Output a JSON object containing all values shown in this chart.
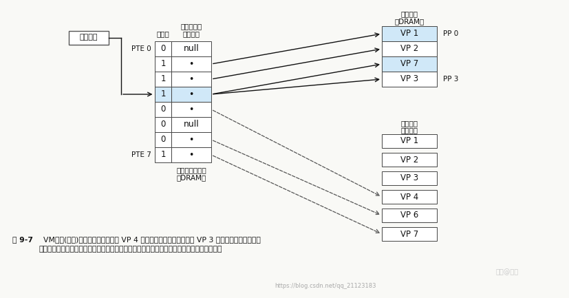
{
  "bg_color": "#f8f8f5",
  "virtual_addr_label": "虚拟地址",
  "page_table_header1": "物理页号或",
  "page_table_header2": "磁盘地址",
  "valid_bit_header": "有效位",
  "page_table_label1": "常驻内存的页表",
  "page_table_label2": "（DRAM）",
  "pte0_label": "PTE 0",
  "pte7_label": "PTE 7",
  "phys_mem_title1": "物理内存",
  "phys_mem_title2": "（DRAM）",
  "virt_mem_title1": "虚拟内存",
  "virt_mem_title2": "（磁盘）",
  "pp0_label": "PP 0",
  "pp3_label": "PP 3",
  "page_table_rows": [
    {
      "valid": "0",
      "addr": "null",
      "shaded": false
    },
    {
      "valid": "1",
      "addr": "•",
      "shaded": false
    },
    {
      "valid": "1",
      "addr": "•",
      "shaded": false
    },
    {
      "valid": "1",
      "addr": "•",
      "shaded": true
    },
    {
      "valid": "0",
      "addr": "•",
      "shaded": false
    },
    {
      "valid": "0",
      "addr": "null",
      "shaded": false
    },
    {
      "valid": "0",
      "addr": "•",
      "shaded": false
    },
    {
      "valid": "1",
      "addr": "•",
      "shaded": false
    }
  ],
  "phys_mem_rows": [
    {
      "label": "VP 1",
      "shaded": true
    },
    {
      "label": "VP 2",
      "shaded": false
    },
    {
      "label": "VP 7",
      "shaded": true
    },
    {
      "label": "VP 3",
      "shaded": false
    }
  ],
  "virt_mem_rows": [
    "VP 1",
    "VP 2",
    "VP 3",
    "VP 4",
    "VP 6",
    "VP 7"
  ],
  "shaded_color": "#d0e8f8",
  "box_color": "#ffffff",
  "border_color": "#444444",
  "text_color": "#111111",
  "caption_bold": "图 9-7",
  "caption_line1": "  VM缺页(之后)。缺页处理程序选择 VP 4 作为牺牲页，并从磁盘上用 VP 3 的副本取代它。在缺页",
  "caption_line2": "处理程序重新启动导致缺页的指令之后，该指令将从内存中正常地读取字，而不会再产生异常",
  "watermark": "https://blog.csdn.net/qq_21123183",
  "solid_arrows": [
    [
      1,
      0
    ],
    [
      2,
      1
    ],
    [
      3,
      2
    ],
    [
      3,
      3
    ]
  ],
  "dashed_arrows": [
    [
      4,
      3
    ],
    [
      6,
      4
    ],
    [
      7,
      5
    ]
  ]
}
